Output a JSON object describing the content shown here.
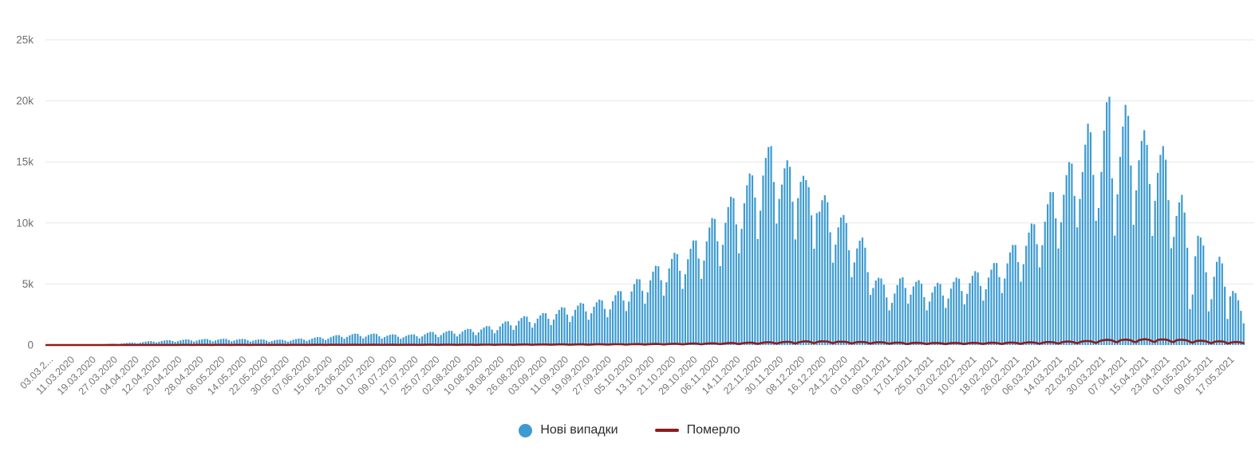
{
  "chart_data": {
    "type": "bar",
    "title": "",
    "xlabel": "",
    "ylabel": "",
    "ylim": [
      0,
      25000
    ],
    "grid": true,
    "legend_position": "bottom-center",
    "x_tick_interval_days": 8,
    "x_start_date": "03.03.2020",
    "x_end_date": "23.05.2021",
    "y_ticks": {
      "values": [
        0,
        5000,
        10000,
        15000,
        20000,
        25000
      ],
      "labels": [
        "0",
        "5k",
        "10k",
        "15k",
        "20k",
        "25k"
      ]
    },
    "x_tick_labels": [
      "03.03.2...",
      "11.03.2020",
      "19.03.2020",
      "27.03.2020",
      "04.04.2020",
      "12.04.2020",
      "20.04.2020",
      "28.04.2020",
      "06.05.2020",
      "14.05.2020",
      "22.05.2020",
      "30.05.2020",
      "07.06.2020",
      "15.06.2020",
      "23.06.2020",
      "01.07.2020",
      "09.07.2020",
      "17.07.2020",
      "25.07.2020",
      "02.08.2020",
      "10.08.2020",
      "18.08.2020",
      "26.08.2020",
      "03.09.2020",
      "11.09.2020",
      "19.09.2020",
      "27.09.2020",
      "05.10.2020",
      "13.10.2020",
      "21.10.2020",
      "29.10.2020",
      "06.11.2020",
      "14.11.2020",
      "22.11.2020",
      "30.11.2020",
      "08.12.2020",
      "16.12.2020",
      "24.12.2020",
      "01.01.2021",
      "09.01.2021",
      "17.01.2021",
      "25.01.2021",
      "02.02.2021",
      "10.02.2021",
      "18.02.2021",
      "26.02.2021",
      "06.03.2021",
      "14.03.2021",
      "22.03.2021",
      "30.03.2021",
      "07.04.2021",
      "15.04.2021",
      "23.04.2021",
      "01.05.2021",
      "09.05.2021",
      "17.05.2021"
    ],
    "series": [
      {
        "name": "Нові випадки",
        "type": "bar",
        "color": "#3d9bd1",
        "values": [
          1,
          2,
          2,
          3,
          3,
          2,
          1,
          3,
          4,
          6,
          10,
          13,
          15,
          14,
          12,
          16,
          24,
          36,
          45,
          44,
          39,
          56,
          76,
          94,
          110,
          117,
          103,
          83,
          112,
          143,
          169,
          189,
          194,
          171,
          138,
          184,
          236,
          279,
          313,
          321,
          273,
          209,
          266,
          327,
          371,
          400,
          398,
          328,
          249,
          315,
          383,
          429,
          460,
          453,
          371,
          280,
          353,
          425,
          472,
          501,
          490,
          397,
          297,
          372,
          447,
          493,
          517,
          500,
          402,
          298,
          369,
          439,
          485,
          505,
          485,
          386,
          284,
          349,
          413,
          451,
          470,
          452,
          360,
          266,
          328,
          388,
          425,
          444,
          427,
          355,
          273,
          349,
          430,
          489,
          530,
          529,
          437,
          335,
          428,
          527,
          599,
          648,
          645,
          532,
          406,
          524,
          649,
          743,
          810,
          812,
          675,
          518,
          662,
          796,
          884,
          935,
          912,
          737,
          551,
          688,
          826,
          903,
          940,
          902,
          718,
          528,
          648,
          765,
          836,
          879,
          852,
          683,
          508,
          629,
          750,
          827,
          870,
          872,
          724,
          554,
          709,
          872,
          991,
          1071,
          1067,
          868,
          653,
          819,
          989,
          1105,
          1175,
          1152,
          936,
          711,
          900,
          1097,
          1235,
          1325,
          1310,
          1073,
          812,
          1035,
          1269,
          1437,
          1550,
          1540,
          1268,
          964,
          1224,
          1527,
          1758,
          1925,
          1940,
          1619,
          1247,
          1602,
          1978,
          2214,
          2363,
          2322,
          1892,
          1424,
          1791,
          2166,
          2423,
          2619,
          2607,
          2150,
          1639,
          2084,
          2548,
          2879,
          3100,
          3056,
          2496,
          1885,
          2376,
          2881,
          3230,
          3450,
          3395,
          2760,
          2074,
          2601,
          3139,
          3504,
          3725,
          3650,
          2964,
          2277,
          2916,
          3591,
          4085,
          4425,
          4414,
          3647,
          2784,
          3564,
          4386,
          4988,
          5400,
          5384,
          4446,
          3393,
          4320,
          5300,
          6009,
          6488,
          6451,
          5314,
          4046,
          5139,
          6278,
          7054,
          7550,
          7445,
          6084,
          4597,
          5796,
          7031,
          7885,
          8563,
          8560,
          7088,
          5423,
          6921,
          8493,
          9631,
          10400,
          10331,
          8502,
          6467,
          8208,
          10019,
          11305,
          12150,
          12028,
          9887,
          7511,
          9522,
          11610,
          13086,
          14050,
          13895,
          12079,
          8687,
          11007,
          13882,
          15331,
          16218,
          16294,
          13357,
          9946,
          11968,
          13141,
          14475,
          15131,
          14599,
          11742,
          8654,
          12034,
          13371,
          13859,
          13514,
          12937,
          10622,
          7892,
          10811,
          10922,
          11863,
          12275,
          11701,
          9243,
          6750,
          8226,
          9643,
          10450,
          10650,
          9991,
          7761,
          5568,
          6768,
          7912,
          8550,
          8800,
          7978,
          5967,
          4104,
          4680,
          5289,
          5510,
          5450,
          4947,
          3900,
          2842,
          3456,
          4214,
          4916,
          5450,
          5553,
          4680,
          3400,
          4122,
          4805,
          5178,
          5313,
          5020,
          3929,
          2842,
          3564,
          4300,
          4798,
          5100,
          4996,
          4056,
          3045,
          3816,
          4623,
          5178,
          5525,
          5432,
          4427,
          3335,
          4194,
          5074,
          5676,
          6050,
          5941,
          4836,
          3640,
          4572,
          5526,
          6175,
          6713,
          6717,
          5568,
          4263,
          5445,
          6687,
          7589,
          8200,
          8197,
          6786,
          5191,
          6624,
          8127,
          9215,
          9950,
          9894,
          8259,
          6366,
          8181,
          10105,
          11531,
          12525,
          12526,
          10374,
          7910,
          10062,
          12309,
          13918,
          14988,
          14865,
          12217,
          9642,
          11968,
          14174,
          16409,
          18132,
          17424,
          13936,
          10179,
          11226,
          14182,
          17569,
          19893,
          20341,
          13661,
          8966,
          12342,
          15415,
          17893,
          19676,
          18776,
          14711,
          9846,
          12672,
          15136,
          16720,
          17600,
          16393,
          13184,
          8940,
          11808,
          14104,
          15580,
          16295,
          15178,
          11866,
          7930,
          8856,
          10578,
          11685,
          12300,
          10854,
          7970,
          2941,
          4140,
          7278,
          8952,
          8810,
          8156,
          5966,
          2762,
          3754,
          5590,
          6813,
          7235,
          6688,
          4784,
          2136,
          3987,
          4426,
          4253,
          3664,
          2802,
          1782
        ]
      },
      {
        "name": "Померло",
        "type": "line",
        "color": "#8e1c1c",
        "values": [
          0,
          0,
          0,
          0,
          0,
          0,
          0,
          1,
          0,
          1,
          0,
          1,
          1,
          1,
          0,
          1,
          1,
          2,
          2,
          1,
          1,
          2,
          3,
          3,
          3,
          3,
          2,
          2,
          4,
          5,
          5,
          5,
          5,
          3,
          3,
          6,
          6,
          6,
          7,
          7,
          6,
          4,
          5,
          8,
          9,
          9,
          9,
          8,
          5,
          8,
          10,
          11,
          12,
          11,
          8,
          6,
          10,
          12,
          13,
          13,
          12,
          8,
          7,
          11,
          13,
          14,
          14,
          13,
          9,
          7,
          11,
          13,
          14,
          14,
          13,
          9,
          7,
          11,
          13,
          14,
          13,
          13,
          10,
          7,
          10,
          12,
          13,
          13,
          12,
          9,
          7,
          10,
          13,
          15,
          16,
          15,
          11,
          8,
          12,
          15,
          17,
          18,
          17,
          13,
          9,
          13,
          17,
          19,
          20,
          19,
          14,
          10,
          15,
          19,
          21,
          23,
          22,
          16,
          11,
          17,
          20,
          22,
          23,
          22,
          17,
          12,
          18,
          21,
          22,
          23,
          22,
          16,
          11,
          17,
          20,
          21,
          21,
          20,
          16,
          11,
          17,
          21,
          23,
          25,
          24,
          19,
          13,
          19,
          23,
          26,
          27,
          26,
          21,
          14,
          21,
          25,
          28,
          29,
          28,
          22,
          15,
          22,
          27,
          30,
          32,
          31,
          24,
          16,
          25,
          31,
          35,
          38,
          37,
          29,
          19,
          29,
          36,
          41,
          44,
          43,
          33,
          22,
          33,
          40,
          45,
          48,
          47,
          36,
          24,
          36,
          44,
          49,
          52,
          51,
          39,
          26,
          39,
          48,
          54,
          57,
          55,
          42,
          28,
          42,
          52,
          58,
          61,
          59,
          45,
          30,
          46,
          57,
          64,
          68,
          66,
          51,
          34,
          52,
          65,
          73,
          78,
          75,
          58,
          38,
          60,
          75,
          85,
          90,
          87,
          67,
          44,
          70,
          88,
          99,
          105,
          101,
          78,
          51,
          81,
          102,
          115,
          122,
          117,
          90,
          59,
          95,
          119,
          134,
          143,
          137,
          106,
          69,
          111,
          139,
          157,
          167,
          160,
          124,
          81,
          130,
          163,
          183,
          195,
          187,
          145,
          94,
          151,
          190,
          214,
          227,
          218,
          168,
          109,
          176,
          221,
          248,
          264,
          253,
          195,
          127,
          204,
          256,
          287,
          299,
          287,
          222,
          144,
          232,
          289,
          298,
          295,
          283,
          219,
          142,
          229,
          272,
          270,
          265,
          250,
          193,
          125,
          190,
          236,
          248,
          245,
          232,
          178,
          115,
          175,
          216,
          226,
          221,
          208,
          159,
          102,
          153,
          188,
          195,
          191,
          179,
          102,
          85,
          153,
          177,
          183,
          178,
          164,
          124,
          81,
          132,
          160,
          170,
          167,
          151,
          117,
          76,
          129,
          158,
          170,
          168,
          154,
          119,
          78,
          133,
          165,
          179,
          177,
          163,
          126,
          82,
          140,
          172,
          188,
          186,
          172,
          133,
          87,
          148,
          183,
          200,
          198,
          184,
          143,
          94,
          160,
          199,
          219,
          217,
          202,
          158,
          104,
          178,
          222,
          245,
          243,
          227,
          178,
          118,
          202,
          253,
          280,
          279,
          261,
          206,
          137,
          235,
          296,
          329,
          329,
          309,
          245,
          164,
          283,
          364,
          407,
          433,
          421,
          376,
          271,
          223,
          392,
          427,
          443,
          429,
          386,
          277,
          229,
          403,
          439,
          481,
          460,
          409,
          295,
          245,
          420,
          451,
          459,
          441,
          393,
          282,
          232,
          398,
          427,
          432,
          413,
          370,
          264,
          180,
          310,
          344,
          355,
          342,
          303,
          215,
          140,
          252,
          293,
          304,
          292,
          257,
          117,
          181,
          229,
          246,
          240,
          212,
          150
        ]
      }
    ]
  },
  "legend": {
    "items": [
      {
        "label": "Нові випадки",
        "marker": "circle"
      },
      {
        "label": "Померло",
        "marker": "line"
      }
    ]
  },
  "colors": {
    "gridline": "#e7e7e7",
    "axis_text": "#767676",
    "legend_text": "#2b2b2b",
    "background": "#ffffff"
  }
}
